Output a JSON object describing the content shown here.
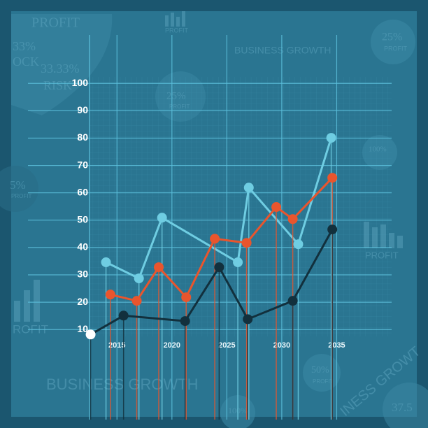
{
  "decorations": [
    "PROFIT",
    "33%",
    "OCK",
    "33.33%",
    "RISK",
    "PROFIT",
    "BUSINESS GROWTH",
    "25%",
    "PROFIT",
    "25%",
    "PROFIT",
    "100%",
    "5%",
    "PROFIT",
    "PROFIT",
    "ROFIT",
    "BUSINESS GROWTH",
    "50%",
    "PROFIT",
    "INESS GROWT",
    "37.5",
    "100%"
  ],
  "chart_data": {
    "type": "line",
    "xlim": [
      2012.5,
      2040
    ],
    "xticks": [
      2015,
      2020,
      2025,
      2030,
      2035
    ],
    "ylim": [
      7.5,
      102.5
    ],
    "yticks": [
      10,
      20,
      30,
      40,
      50,
      60,
      70,
      80,
      90,
      100
    ],
    "grid": true,
    "series": [
      {
        "color": "#6fcde2",
        "x": [
          2014.0,
          2017.0,
          2019.1,
          2026.0,
          2027.0,
          2031.5,
          2034.5
        ],
        "values": [
          34.6,
          28.7,
          50.9,
          34.6,
          61.9,
          41.2,
          80.1
        ]
      },
      {
        "color": "#e9552d",
        "x": [
          2014.4,
          2016.8,
          2018.8,
          2021.3,
          2023.9,
          2026.8,
          2029.5,
          2031.0,
          2034.6
        ],
        "values": [
          22.8,
          20.5,
          32.8,
          21.8,
          43.2,
          41.7,
          54.8,
          50.4,
          65.5
        ]
      },
      {
        "color": "#12303d",
        "x": [
          2012.6,
          2015.6,
          2021.2,
          2024.3,
          2026.9,
          2031.0,
          2034.6
        ],
        "values": [
          8.2,
          15.1,
          13.1,
          32.8,
          13.8,
          20.5,
          46.6
        ]
      }
    ]
  }
}
